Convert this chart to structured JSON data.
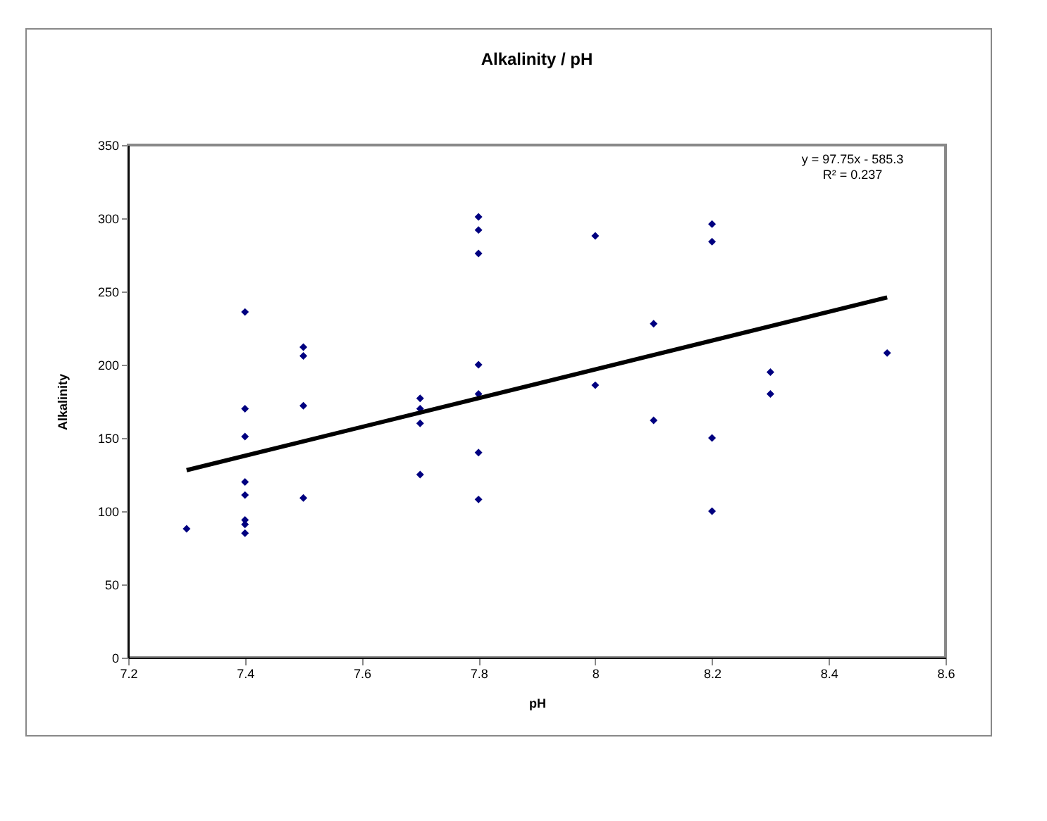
{
  "chart_data": {
    "type": "scatter",
    "title": "Alkalinity / pH",
    "xlabel": "pH",
    "ylabel": "Alkalinity",
    "xlim": [
      7.2,
      8.6
    ],
    "xticks": [
      7.2,
      7.4,
      7.6,
      7.8,
      8,
      8.2,
      8.4,
      8.6
    ],
    "ylim": [
      0,
      350
    ],
    "yticks": [
      0,
      50,
      100,
      150,
      200,
      250,
      300,
      350
    ],
    "grid": false,
    "marker": "diamond",
    "annotations": [
      "y = 97.75x - 585.3",
      "R² = 0.237"
    ],
    "series": [
      {
        "color": "#000080",
        "x": [
          7.3,
          7.4,
          7.4,
          7.4,
          7.4,
          7.4,
          7.4,
          7.4,
          7.4,
          7.5,
          7.5,
          7.5,
          7.5,
          7.7,
          7.7,
          7.7,
          7.7,
          7.8,
          7.8,
          7.8,
          7.8,
          7.8,
          7.8,
          7.8,
          8,
          8,
          8.1,
          8.1,
          8.2,
          8.2,
          8.2,
          8.2,
          8.3,
          8.3,
          8.5
        ],
        "values": [
          88,
          236,
          170,
          151,
          120,
          111,
          94,
          91,
          85,
          212,
          206,
          172,
          109,
          177,
          170,
          160,
          125,
          301,
          292,
          276,
          200,
          180,
          140,
          108,
          288,
          186,
          228,
          162,
          296,
          284,
          150,
          100,
          195,
          180,
          208
        ]
      },
      {
        "type": "line",
        "marker": "none",
        "color": "#000000",
        "x": [
          7.3,
          8.5
        ],
        "values": [
          128,
          246
        ]
      }
    ]
  }
}
